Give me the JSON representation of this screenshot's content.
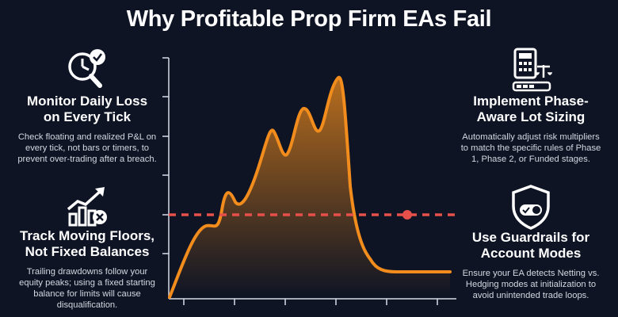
{
  "title": "Why Profitable Prop Firm EAs Fail",
  "panels": {
    "left_top": {
      "heading_1": "Monitor Daily Loss",
      "heading_2": "on Every Tick",
      "body": "Check floating and realized P&L on every tick, not bars or timers, to prevent over-trading after a breach.",
      "icon": "clock-magnifier-check-icon"
    },
    "left_bottom": {
      "heading_1": "Track Moving Floors,",
      "heading_2": "Not Fixed Balances",
      "body": "Trailing drawdowns follow your equity peaks; using a fixed starting balance for limits will cause disqualification.",
      "icon": "bar-chart-arrow-x-icon"
    },
    "right_top": {
      "heading_1": "Implement Phase-",
      "heading_2": "Aware Lot Sizing",
      "body": "Automatically adjust risk multipliers to match the specific rules of Phase 1, Phase 2, or Funded stages.",
      "icon": "calculator-scale-icon"
    },
    "right_bottom": {
      "heading_1": "Use Guardrails for",
      "heading_2": "Account Modes",
      "body": "Ensure your EA detects Netting vs. Hedging modes at initialization to avoid unintended trade loops.",
      "icon": "shield-toggle-icon"
    }
  },
  "colors": {
    "background": "#0e1424",
    "curve": "#f28c1c",
    "threshold": "#e5504a",
    "axis": "#ffffff"
  }
}
